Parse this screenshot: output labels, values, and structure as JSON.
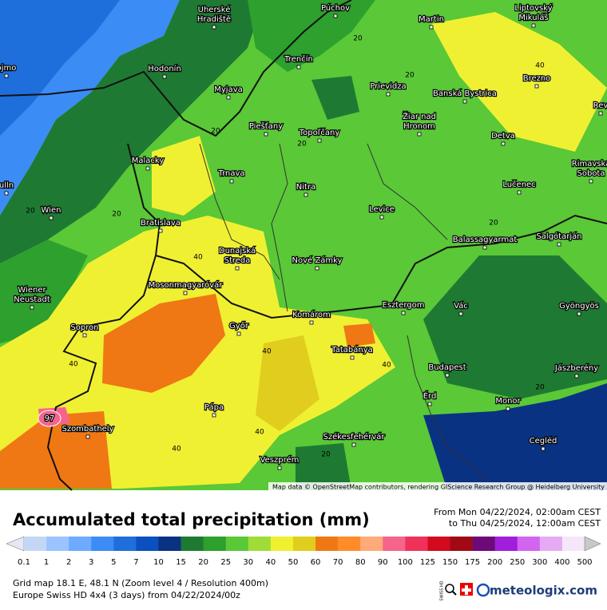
{
  "map": {
    "cities": [
      [
        "Uherské",
        "Hradiště"
      ],
      [
        "Púchov"
      ],
      [
        "Martin"
      ],
      [
        "Liptovský",
        "Mikuláš"
      ],
      [
        "ojmo"
      ],
      [
        "Hodonín"
      ],
      [
        "Trenčín"
      ],
      [
        "Brezno"
      ],
      [
        "Myjava"
      ],
      [
        "Prievidza"
      ],
      [
        "Banská Bystrica"
      ],
      [
        "Rev"
      ],
      [
        "Žiar nad",
        "Hronom"
      ],
      [
        "Piešťany"
      ],
      [
        "Topoľčany"
      ],
      [
        "Detva"
      ],
      [
        "Malacky"
      ],
      [
        "Trnava"
      ],
      [
        "Rimavská",
        "Sobota"
      ],
      [
        "Nitra"
      ],
      [
        "Lučenec"
      ],
      [
        "ulln"
      ],
      [
        "Wien"
      ],
      [
        "Levice"
      ],
      [
        "Bratislava"
      ],
      [
        "Balassagyarmat"
      ],
      [
        "Salgótarján"
      ],
      [
        "Dunajská",
        "Streda"
      ],
      [
        "Nové Zámky"
      ],
      [
        "Wiener",
        "Neustadt"
      ],
      [
        "Mosonmagyaróvár"
      ],
      [
        "Esztergom"
      ],
      [
        "Komárom"
      ],
      [
        "Vác"
      ],
      [
        "Gyöngyös"
      ],
      [
        "Sopron"
      ],
      [
        "Győr"
      ],
      [
        "Tatabánya"
      ],
      [
        "Jászberény"
      ],
      [
        "Budapest"
      ],
      [
        "Érd"
      ],
      [
        "Monor"
      ],
      [
        "Pápa"
      ],
      [
        "Szombathely"
      ],
      [
        "Székesfehérvár"
      ],
      [
        "Cegléd"
      ],
      [
        "Veszprém"
      ]
    ],
    "contour_labels": [
      "20",
      "20",
      "20",
      "20",
      "20",
      "20",
      "20",
      "20",
      "20",
      "40",
      "40",
      "40",
      "40",
      "40",
      "40",
      "40"
    ],
    "max_label": "97",
    "attribution": "Map data © OpenStreetMap contributors, rendering GIScience Research Group @ Heidelberg University"
  },
  "legend": {
    "title": "Accumulated total precipitation (mm)",
    "period_from": "From Mon 04/22/2024, 02:00am CEST",
    "period_to": "to Thu 04/25/2024, 12:00am CEST",
    "labels": [
      0.1,
      1,
      2,
      3,
      5,
      7,
      10,
      15,
      20,
      25,
      30,
      40,
      50,
      60,
      70,
      80,
      90,
      100,
      125,
      150,
      175,
      200,
      250,
      300,
      400,
      500
    ],
    "colors": [
      "#e6e6f5",
      "#c3d7f5",
      "#9bc3ff",
      "#6eaaff",
      "#3c8cf5",
      "#1e6edc",
      "#0a50be",
      "#0a3282",
      "#1e7a32",
      "#2da02d",
      "#5ac837",
      "#a0dc37",
      "#f0f032",
      "#e1cd1e",
      "#f07814",
      "#ff8c28",
      "#ffaa78",
      "#f5648c",
      "#f0325a",
      "#d20a1e",
      "#a00a14",
      "#6e0a78",
      "#a01edc",
      "#d264f0",
      "#e6aaf5",
      "#f5e6fa",
      "#c8c8c8"
    ]
  },
  "footer": {
    "line1": "Grid map 18.1 E, 48.1 N (Zoom level 4 / Resolution 400m)",
    "line2": "Europe Swiss HD 4x4 (3 days) from 04/22/2024/00z",
    "swiss_hd": "SWISS HD",
    "brand": "meteologix.com"
  }
}
